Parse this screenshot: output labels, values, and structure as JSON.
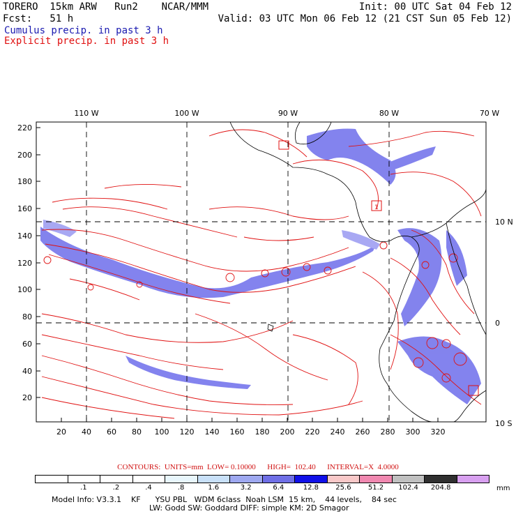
{
  "header": {
    "line1_left": "TORERO  15km ARW   Run2    NCAR/MMM",
    "line1_right": "Init: 00 UTC Sat 04 Feb 12",
    "line2_left": "Fcst:   51 h",
    "line2_right": "Valid: 03 UTC Mon 06 Feb 12 (21 CST Sun 05 Feb 12)",
    "line3": "Cumulus precip. in past 3 h",
    "line4": "Explicit precip. in past 3 h"
  },
  "map": {
    "top_lon_labels": [
      "110 W",
      "100 W",
      "90 W",
      "80 W",
      "70 W"
    ],
    "left_labels": [
      "220",
      "200",
      "180",
      "160",
      "140",
      "120",
      "100",
      "80",
      "60",
      "40",
      "20"
    ],
    "bottom_labels": [
      "20",
      "40",
      "60",
      "80",
      "100",
      "120",
      "140",
      "160",
      "180",
      "200",
      "220",
      "240",
      "260",
      "280",
      "300",
      "320"
    ],
    "right_lat_labels": [
      "10 N",
      "0",
      "10 S"
    ],
    "contour_color": "#e01010",
    "cumulus_color": "#3030e0",
    "frame_color": "#000000",
    "marker_label": "1"
  },
  "contours_line": "CONTOURS:  UNITS=mm  LOW= 0.10000      HIGH=  102.40      INTERVAL=X  4.0000",
  "colorbar": {
    "colors": [
      "#ffffff",
      "#ffffff",
      "#ffffff",
      "#ffffff",
      "#e8f6fc",
      "#c8e0f8",
      "#9ea8f0",
      "#6f6fe6",
      "#1010e8",
      "#f8c8c8",
      "#f088b0",
      "#c0c0c0",
      "#303030",
      "#d8a0f0"
    ],
    "labels": [
      ".1",
      ".2",
      ".4",
      ".8",
      "1.6",
      "3.2",
      "6.4",
      "12.8",
      "25.6",
      "51.2",
      "102.4",
      "204.8"
    ],
    "unit": "mm"
  },
  "model_info": {
    "line1": "Model Info: V3.3.1    KF      YSU PBL   WDM 6class  Noah LSM  15 km,    44 levels,    84 sec",
    "line2": "LW: Godd SW: Goddard DIFF: simple KM: 2D Smagor"
  }
}
